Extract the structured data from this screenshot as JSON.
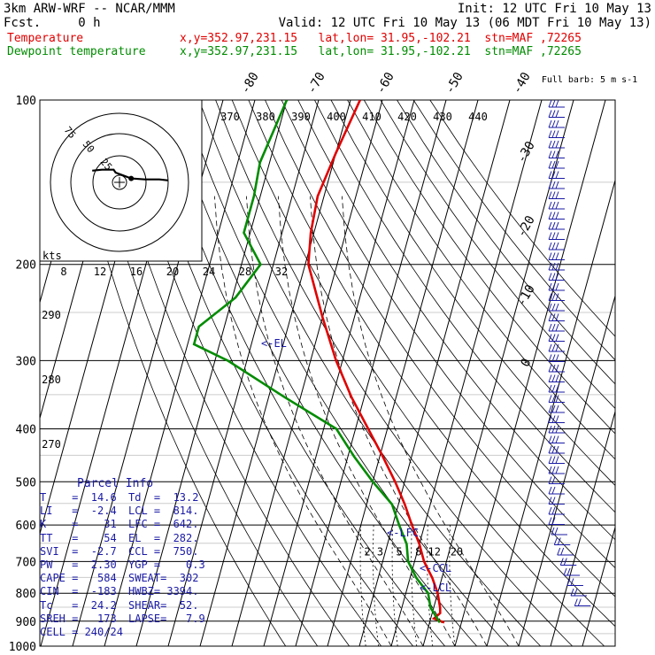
{
  "header": {
    "model": "3km ARW-WRF -- NCAR/MMM",
    "init": "Init: 12 UTC Fri 10 May 13",
    "fcst": "Fcst.     0 h",
    "valid": "Valid: 12 UTC Fri 10 May 13 (06 MDT Fri 10 May 13)",
    "temp_label": "Temperature",
    "dew_label": "Dewpoint temperature",
    "location": "x,y=352.97,231.15   lat,lon= 31.95,-102.21  stn=MAF ,72265"
  },
  "colors": {
    "temperature": "#e00000",
    "dewpoint": "#008c00",
    "annotation": "#1a1aa6",
    "grid": "#000000"
  },
  "chart_data": {
    "type": "line",
    "title": "Skew-T log-P sounding",
    "ylabel": "pressure (hPa)",
    "pressure_levels": [
      100,
      200,
      300,
      400,
      500,
      600,
      700,
      800,
      900,
      1000
    ],
    "ylim": [
      1000,
      100
    ],
    "isotherm_labels": [
      "-80",
      "-70",
      "-60",
      "-50",
      "-40",
      "-30",
      "-20",
      "-10",
      "0"
    ],
    "theta_labels": [
      "370",
      "380",
      "390",
      "400",
      "410",
      "420",
      "430",
      "440"
    ],
    "mixing_ratio_labels": [
      "2",
      "3",
      "5",
      "8",
      "12",
      "20"
    ],
    "thetae_labels": [
      "290",
      "280",
      "270"
    ],
    "series": [
      {
        "name": "Temperature",
        "points": [
          {
            "p": 100,
            "t": -57
          },
          {
            "p": 125,
            "t": -60
          },
          {
            "p": 150,
            "t": -62
          },
          {
            "p": 175,
            "t": -61
          },
          {
            "p": 200,
            "t": -59
          },
          {
            "p": 250,
            "t": -50
          },
          {
            "p": 300,
            "t": -42
          },
          {
            "p": 350,
            "t": -34
          },
          {
            "p": 400,
            "t": -26
          },
          {
            "p": 450,
            "t": -19
          },
          {
            "p": 500,
            "t": -13
          },
          {
            "p": 550,
            "t": -8
          },
          {
            "p": 600,
            "t": -4
          },
          {
            "p": 650,
            "t": 0
          },
          {
            "p": 700,
            "t": 3
          },
          {
            "p": 750,
            "t": 7
          },
          {
            "p": 800,
            "t": 10
          },
          {
            "p": 850,
            "t": 12
          },
          {
            "p": 870,
            "t": 12.5
          },
          {
            "p": 890,
            "t": 11
          },
          {
            "p": 905,
            "t": 14.6
          }
        ]
      },
      {
        "name": "Dewpoint temperature",
        "points": [
          {
            "p": 100,
            "t": -80
          },
          {
            "p": 130,
            "t": -83
          },
          {
            "p": 150,
            "t": -82
          },
          {
            "p": 175,
            "t": -82
          },
          {
            "p": 200,
            "t": -74
          },
          {
            "p": 230,
            "t": -79
          },
          {
            "p": 260,
            "t": -88
          },
          {
            "p": 280,
            "t": -88
          },
          {
            "p": 300,
            "t": -76
          },
          {
            "p": 350,
            "t": -55
          },
          {
            "p": 400,
            "t": -36
          },
          {
            "p": 450,
            "t": -28
          },
          {
            "p": 500,
            "t": -20
          },
          {
            "p": 550,
            "t": -12
          },
          {
            "p": 600,
            "t": -8
          },
          {
            "p": 650,
            "t": -4
          },
          {
            "p": 700,
            "t": -2
          },
          {
            "p": 750,
            "t": 2
          },
          {
            "p": 800,
            "t": 7
          },
          {
            "p": 850,
            "t": 9
          },
          {
            "p": 905,
            "t": 13.2
          }
        ]
      }
    ],
    "annotations": [
      "<-EL",
      "<-LFC",
      "<-CCL",
      "<-LCL"
    ],
    "wind_barbs_label": "Full barb: 5 m s-1",
    "hodograph": {
      "speed_unit_label": "kts",
      "ring_labels": [
        "75",
        "50",
        "25"
      ],
      "axis_labels": [
        "8",
        "12",
        "16",
        "20",
        "24",
        "28",
        "32"
      ],
      "points": [
        [
          -28,
          -12
        ],
        [
          -18,
          -13
        ],
        [
          -6,
          -13
        ],
        [
          -4,
          -10
        ],
        [
          4,
          -7
        ],
        [
          12,
          -4
        ],
        [
          26,
          -3
        ],
        [
          41,
          -3
        ],
        [
          50,
          -2
        ]
      ]
    }
  },
  "parcel_info": {
    "title": "Parcel Info",
    "rows": [
      [
        "T    =  14.6",
        "Td  =  13.2"
      ],
      [
        "LI   =  -2.4",
        "LCL =  814."
      ],
      [
        "K    =    31",
        "LFC =  642."
      ],
      [
        "TT   =    54",
        "EL  =  282."
      ],
      [
        "SVI  =  -2.7",
        "CCL =  750."
      ],
      [
        "PW   =  2.30",
        "YGP =    0.3"
      ],
      [
        "CAPE =   584",
        "SWEAT=  302"
      ],
      [
        "CIN  =  -183",
        "HWBZ= 3394."
      ],
      [
        "Tc   =  24.2",
        "SHEAR=  52."
      ],
      [
        "SREH =   173",
        "LAPSE=   7.9"
      ],
      [
        "CELL = 240/24",
        ""
      ]
    ]
  }
}
